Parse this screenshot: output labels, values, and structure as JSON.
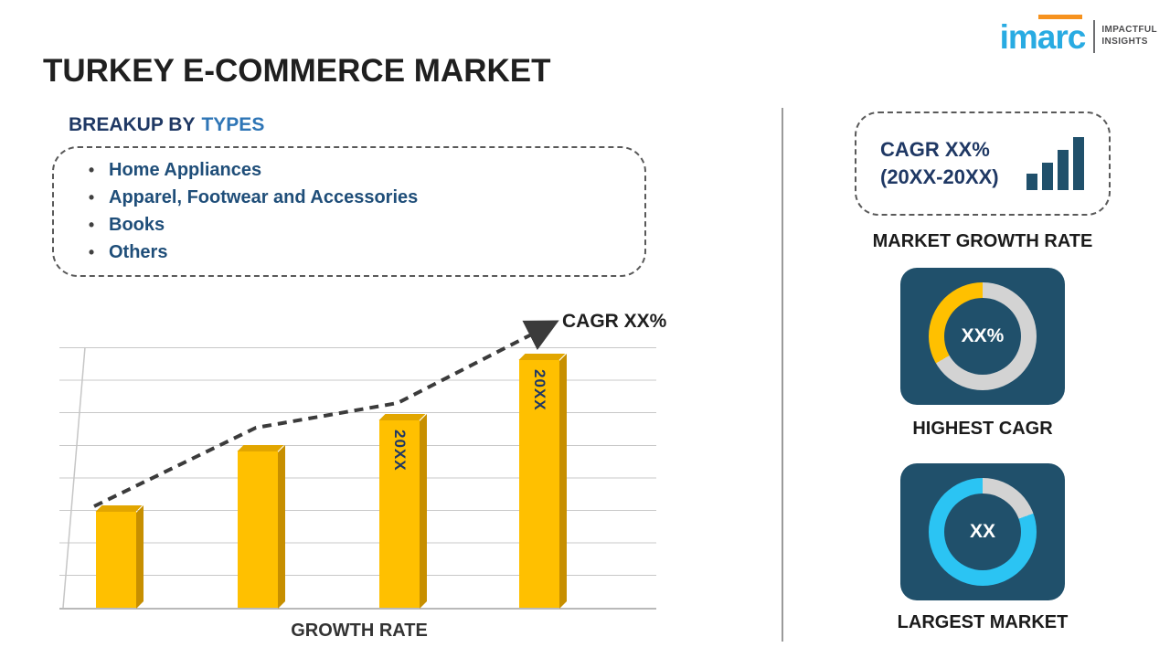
{
  "title": "TURKEY E-COMMERCE MARKET",
  "logo": {
    "brand": "imarc",
    "tagline_line1": "IMPACTFUL",
    "tagline_line2": "INSIGHTS",
    "brand_color": "#29ABE2",
    "accent_color": "#F6921E"
  },
  "breakup": {
    "heading_prefix": "BREAKUP BY",
    "heading_highlight": "TYPES",
    "bullet": "•",
    "items": [
      "Home Appliances",
      "Apparel, Footwear and Accessories",
      "Books",
      "Others"
    ]
  },
  "chart_data": {
    "type": "bar",
    "categories": [
      "",
      "",
      "20XX",
      "20XX"
    ],
    "values": [
      37,
      60,
      72,
      95
    ],
    "ylim": [
      0,
      100
    ],
    "unit": "relative bar height (percent of plot height, unlabeled axis)",
    "xlabel": "GROWTH RATE",
    "annotation": "CAGR XX%",
    "trend": "rising dashed arrow across bar tops",
    "bar_color": "#FFC000",
    "grid": true,
    "legend": "none"
  },
  "right_panel": {
    "growth_box": {
      "line1": "CAGR XX%",
      "line2": "(20XX-20XX)"
    },
    "growth_box_label": "MARKET GROWTH RATE",
    "highest_cagr": {
      "value": "XX%",
      "label": "HIGHEST CAGR",
      "segments": [
        {
          "color": "#D3D3D3",
          "from": 0,
          "to": 240
        },
        {
          "color": "#FFC000",
          "from": 240,
          "to": 360
        }
      ]
    },
    "largest_market": {
      "value": "XX",
      "label": "LARGEST MARKET",
      "segments": [
        {
          "color": "#D3D3D3",
          "from": 0,
          "to": 70
        },
        {
          "color": "#2BC4F3",
          "from": 70,
          "to": 360
        }
      ]
    }
  },
  "colors": {
    "navy_text": "#1F3864",
    "blue_accent": "#2E75B6",
    "card_bg": "#20506B",
    "bar_yellow": "#FFC000",
    "cyan": "#2BC4F3"
  }
}
